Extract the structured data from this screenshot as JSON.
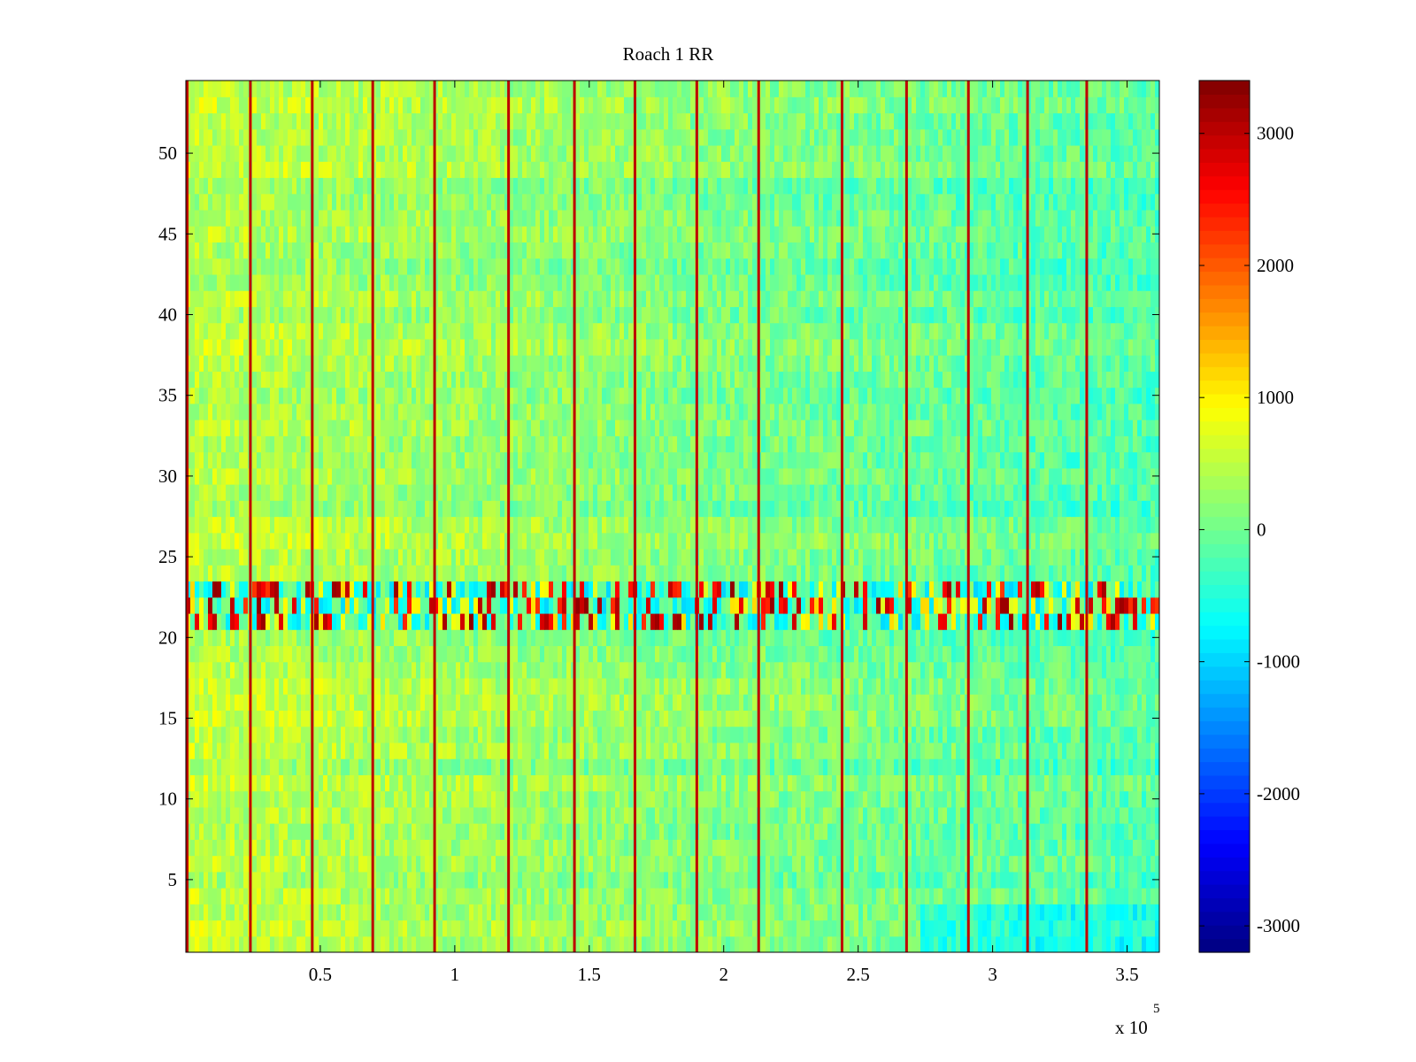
{
  "chart_data": {
    "type": "heatmap",
    "title": "Roach 1 RR",
    "xlabel": "",
    "ylabel": "",
    "x_exponent_label": "x 10",
    "x_exponent_power": "5",
    "xlim": [
      0,
      362000
    ],
    "ylim": [
      0.5,
      54.5
    ],
    "x_ticks": [
      {
        "value": 50000,
        "label": "0.5"
      },
      {
        "value": 100000,
        "label": "1"
      },
      {
        "value": 150000,
        "label": "1.5"
      },
      {
        "value": 200000,
        "label": "2"
      },
      {
        "value": 250000,
        "label": "2.5"
      },
      {
        "value": 300000,
        "label": "3"
      },
      {
        "value": 350000,
        "label": "3.5"
      }
    ],
    "y_ticks": [
      {
        "value": 5,
        "label": "5"
      },
      {
        "value": 10,
        "label": "10"
      },
      {
        "value": 15,
        "label": "15"
      },
      {
        "value": 20,
        "label": "20"
      },
      {
        "value": 25,
        "label": "25"
      },
      {
        "value": 30,
        "label": "30"
      },
      {
        "value": 35,
        "label": "35"
      },
      {
        "value": 40,
        "label": "40"
      },
      {
        "value": 45,
        "label": "45"
      },
      {
        "value": 50,
        "label": "50"
      }
    ],
    "rows": 54,
    "colorbar": {
      "colormap": "jet",
      "clim": [
        -3200,
        3400
      ],
      "ticks": [
        {
          "value": 3000,
          "label": "3000"
        },
        {
          "value": 2000,
          "label": "2000"
        },
        {
          "value": 1000,
          "label": "1000"
        },
        {
          "value": 0,
          "label": "0"
        },
        {
          "value": -1000,
          "label": "-1000"
        },
        {
          "value": -2000,
          "label": "-2000"
        },
        {
          "value": -3000,
          "label": "-3000"
        }
      ]
    },
    "background_value": 150,
    "stimulus_lines_x": [
      500,
      24000,
      47000,
      69500,
      92500,
      120000,
      144500,
      167000,
      190000,
      213000,
      244000,
      268000,
      291000,
      313000,
      335000
    ],
    "stimulus_value": 3000,
    "distinct_band_rows": [
      21,
      23
    ],
    "band_description_value_range": [
      -1000,
      3400
    ]
  }
}
